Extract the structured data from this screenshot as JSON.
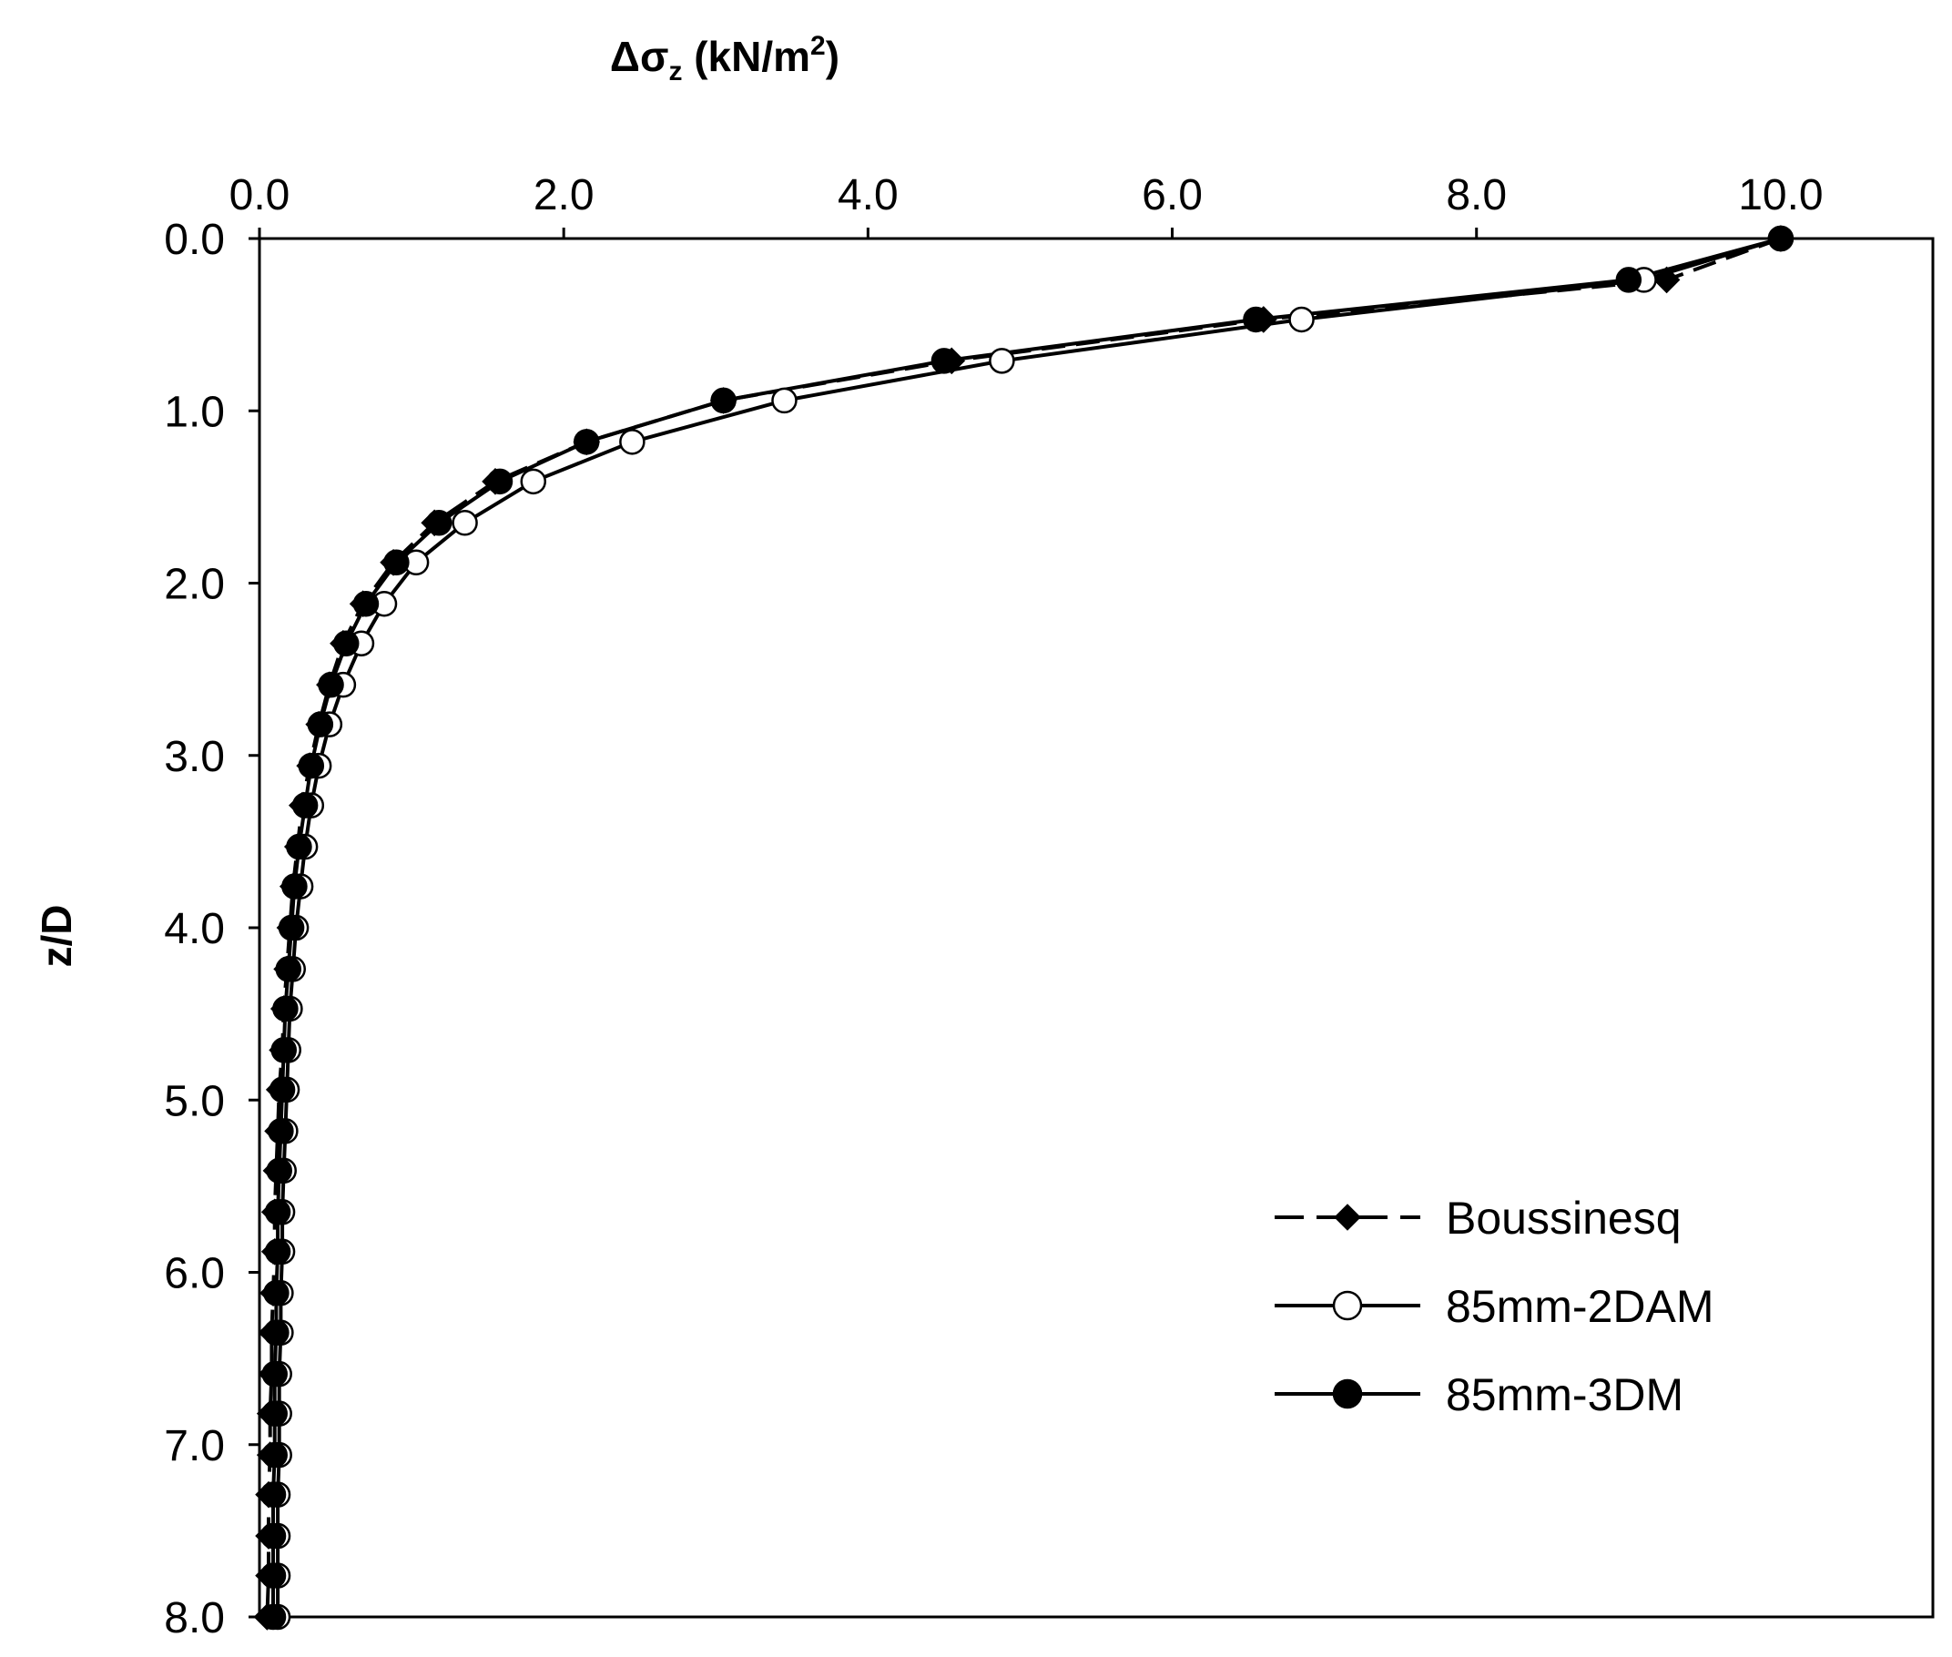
{
  "chart_data": {
    "type": "line",
    "xlabel": {
      "prefix": "Δσ",
      "subscript": "z",
      "unit_open": " (kN/m",
      "superscript": "2",
      "unit_close": ")"
    },
    "ylabel": "z/D",
    "x_axis_position": "top",
    "y_axis_inverted": true,
    "xlim": [
      0,
      11.0
    ],
    "ylim": [
      0,
      8.0
    ],
    "xticks": [
      "0.0",
      "2.0",
      "4.0",
      "6.0",
      "8.0",
      "10.0"
    ],
    "yticks": [
      "0.0",
      "1.0",
      "2.0",
      "3.0",
      "4.0",
      "5.0",
      "6.0",
      "7.0",
      "8.0"
    ],
    "grid": false,
    "legend_position": "lower-right",
    "series": [
      {
        "name": "Boussinesq",
        "line_style": "dashed",
        "marker": "diamond",
        "marker_fill": "filled",
        "color": "#000000",
        "points": [
          {
            "x": 10.0,
            "y": 0.0
          },
          {
            "x": 9.25,
            "y": 0.24
          },
          {
            "x": 6.6,
            "y": 0.47
          },
          {
            "x": 4.55,
            "y": 0.71
          },
          {
            "x": 3.05,
            "y": 0.94
          },
          {
            "x": 2.15,
            "y": 1.18
          },
          {
            "x": 1.55,
            "y": 1.41
          },
          {
            "x": 1.15,
            "y": 1.65
          },
          {
            "x": 0.88,
            "y": 1.88
          },
          {
            "x": 0.68,
            "y": 2.12
          },
          {
            "x": 0.55,
            "y": 2.35
          },
          {
            "x": 0.46,
            "y": 2.59
          },
          {
            "x": 0.39,
            "y": 2.82
          },
          {
            "x": 0.33,
            "y": 3.06
          },
          {
            "x": 0.28,
            "y": 3.29
          },
          {
            "x": 0.25,
            "y": 3.53
          },
          {
            "x": 0.22,
            "y": 3.76
          },
          {
            "x": 0.2,
            "y": 4.0
          },
          {
            "x": 0.18,
            "y": 4.24
          },
          {
            "x": 0.16,
            "y": 4.47
          },
          {
            "x": 0.15,
            "y": 4.71
          },
          {
            "x": 0.13,
            "y": 4.94
          },
          {
            "x": 0.12,
            "y": 5.18
          },
          {
            "x": 0.11,
            "y": 5.41
          },
          {
            "x": 0.1,
            "y": 5.65
          },
          {
            "x": 0.1,
            "y": 5.88
          },
          {
            "x": 0.09,
            "y": 6.12
          },
          {
            "x": 0.08,
            "y": 6.35
          },
          {
            "x": 0.08,
            "y": 6.59
          },
          {
            "x": 0.07,
            "y": 6.82
          },
          {
            "x": 0.07,
            "y": 7.06
          },
          {
            "x": 0.06,
            "y": 7.29
          },
          {
            "x": 0.06,
            "y": 7.53
          },
          {
            "x": 0.06,
            "y": 7.76
          },
          {
            "x": 0.05,
            "y": 8.0
          }
        ]
      },
      {
        "name": "85mm-2DAM",
        "line_style": "solid",
        "marker": "circle",
        "marker_fill": "open",
        "color": "#000000",
        "points": [
          {
            "x": 10.0,
            "y": 0.0
          },
          {
            "x": 9.1,
            "y": 0.24
          },
          {
            "x": 6.85,
            "y": 0.47
          },
          {
            "x": 4.88,
            "y": 0.71
          },
          {
            "x": 3.45,
            "y": 0.94
          },
          {
            "x": 2.45,
            "y": 1.18
          },
          {
            "x": 1.8,
            "y": 1.41
          },
          {
            "x": 1.35,
            "y": 1.65
          },
          {
            "x": 1.03,
            "y": 1.88
          },
          {
            "x": 0.82,
            "y": 2.12
          },
          {
            "x": 0.67,
            "y": 2.35
          },
          {
            "x": 0.55,
            "y": 2.59
          },
          {
            "x": 0.46,
            "y": 2.82
          },
          {
            "x": 0.39,
            "y": 3.06
          },
          {
            "x": 0.34,
            "y": 3.29
          },
          {
            "x": 0.3,
            "y": 3.53
          },
          {
            "x": 0.27,
            "y": 3.76
          },
          {
            "x": 0.24,
            "y": 4.0
          },
          {
            "x": 0.22,
            "y": 4.24
          },
          {
            "x": 0.2,
            "y": 4.47
          },
          {
            "x": 0.19,
            "y": 4.71
          },
          {
            "x": 0.18,
            "y": 4.94
          },
          {
            "x": 0.17,
            "y": 5.18
          },
          {
            "x": 0.16,
            "y": 5.41
          },
          {
            "x": 0.15,
            "y": 5.65
          },
          {
            "x": 0.15,
            "y": 5.88
          },
          {
            "x": 0.14,
            "y": 6.12
          },
          {
            "x": 0.14,
            "y": 6.35
          },
          {
            "x": 0.13,
            "y": 6.59
          },
          {
            "x": 0.13,
            "y": 6.82
          },
          {
            "x": 0.13,
            "y": 7.06
          },
          {
            "x": 0.12,
            "y": 7.29
          },
          {
            "x": 0.12,
            "y": 7.53
          },
          {
            "x": 0.12,
            "y": 7.76
          },
          {
            "x": 0.12,
            "y": 8.0
          }
        ]
      },
      {
        "name": "85mm-3DM",
        "line_style": "solid",
        "marker": "circle",
        "marker_fill": "filled",
        "color": "#000000",
        "points": [
          {
            "x": 10.0,
            "y": 0.0
          },
          {
            "x": 9.0,
            "y": 0.24
          },
          {
            "x": 6.55,
            "y": 0.47
          },
          {
            "x": 4.5,
            "y": 0.71
          },
          {
            "x": 3.05,
            "y": 0.94
          },
          {
            "x": 2.15,
            "y": 1.18
          },
          {
            "x": 1.58,
            "y": 1.41
          },
          {
            "x": 1.18,
            "y": 1.65
          },
          {
            "x": 0.9,
            "y": 1.88
          },
          {
            "x": 0.7,
            "y": 2.12
          },
          {
            "x": 0.57,
            "y": 2.35
          },
          {
            "x": 0.47,
            "y": 2.59
          },
          {
            "x": 0.4,
            "y": 2.82
          },
          {
            "x": 0.34,
            "y": 3.06
          },
          {
            "x": 0.3,
            "y": 3.29
          },
          {
            "x": 0.26,
            "y": 3.53
          },
          {
            "x": 0.23,
            "y": 3.76
          },
          {
            "x": 0.21,
            "y": 4.0
          },
          {
            "x": 0.19,
            "y": 4.24
          },
          {
            "x": 0.17,
            "y": 4.47
          },
          {
            "x": 0.16,
            "y": 4.71
          },
          {
            "x": 0.15,
            "y": 4.94
          },
          {
            "x": 0.14,
            "y": 5.18
          },
          {
            "x": 0.13,
            "y": 5.41
          },
          {
            "x": 0.12,
            "y": 5.65
          },
          {
            "x": 0.12,
            "y": 5.88
          },
          {
            "x": 0.11,
            "y": 6.12
          },
          {
            "x": 0.11,
            "y": 6.35
          },
          {
            "x": 0.1,
            "y": 6.59
          },
          {
            "x": 0.1,
            "y": 6.82
          },
          {
            "x": 0.1,
            "y": 7.06
          },
          {
            "x": 0.09,
            "y": 7.29
          },
          {
            "x": 0.09,
            "y": 7.53
          },
          {
            "x": 0.09,
            "y": 7.76
          },
          {
            "x": 0.09,
            "y": 8.0
          }
        ]
      }
    ]
  }
}
